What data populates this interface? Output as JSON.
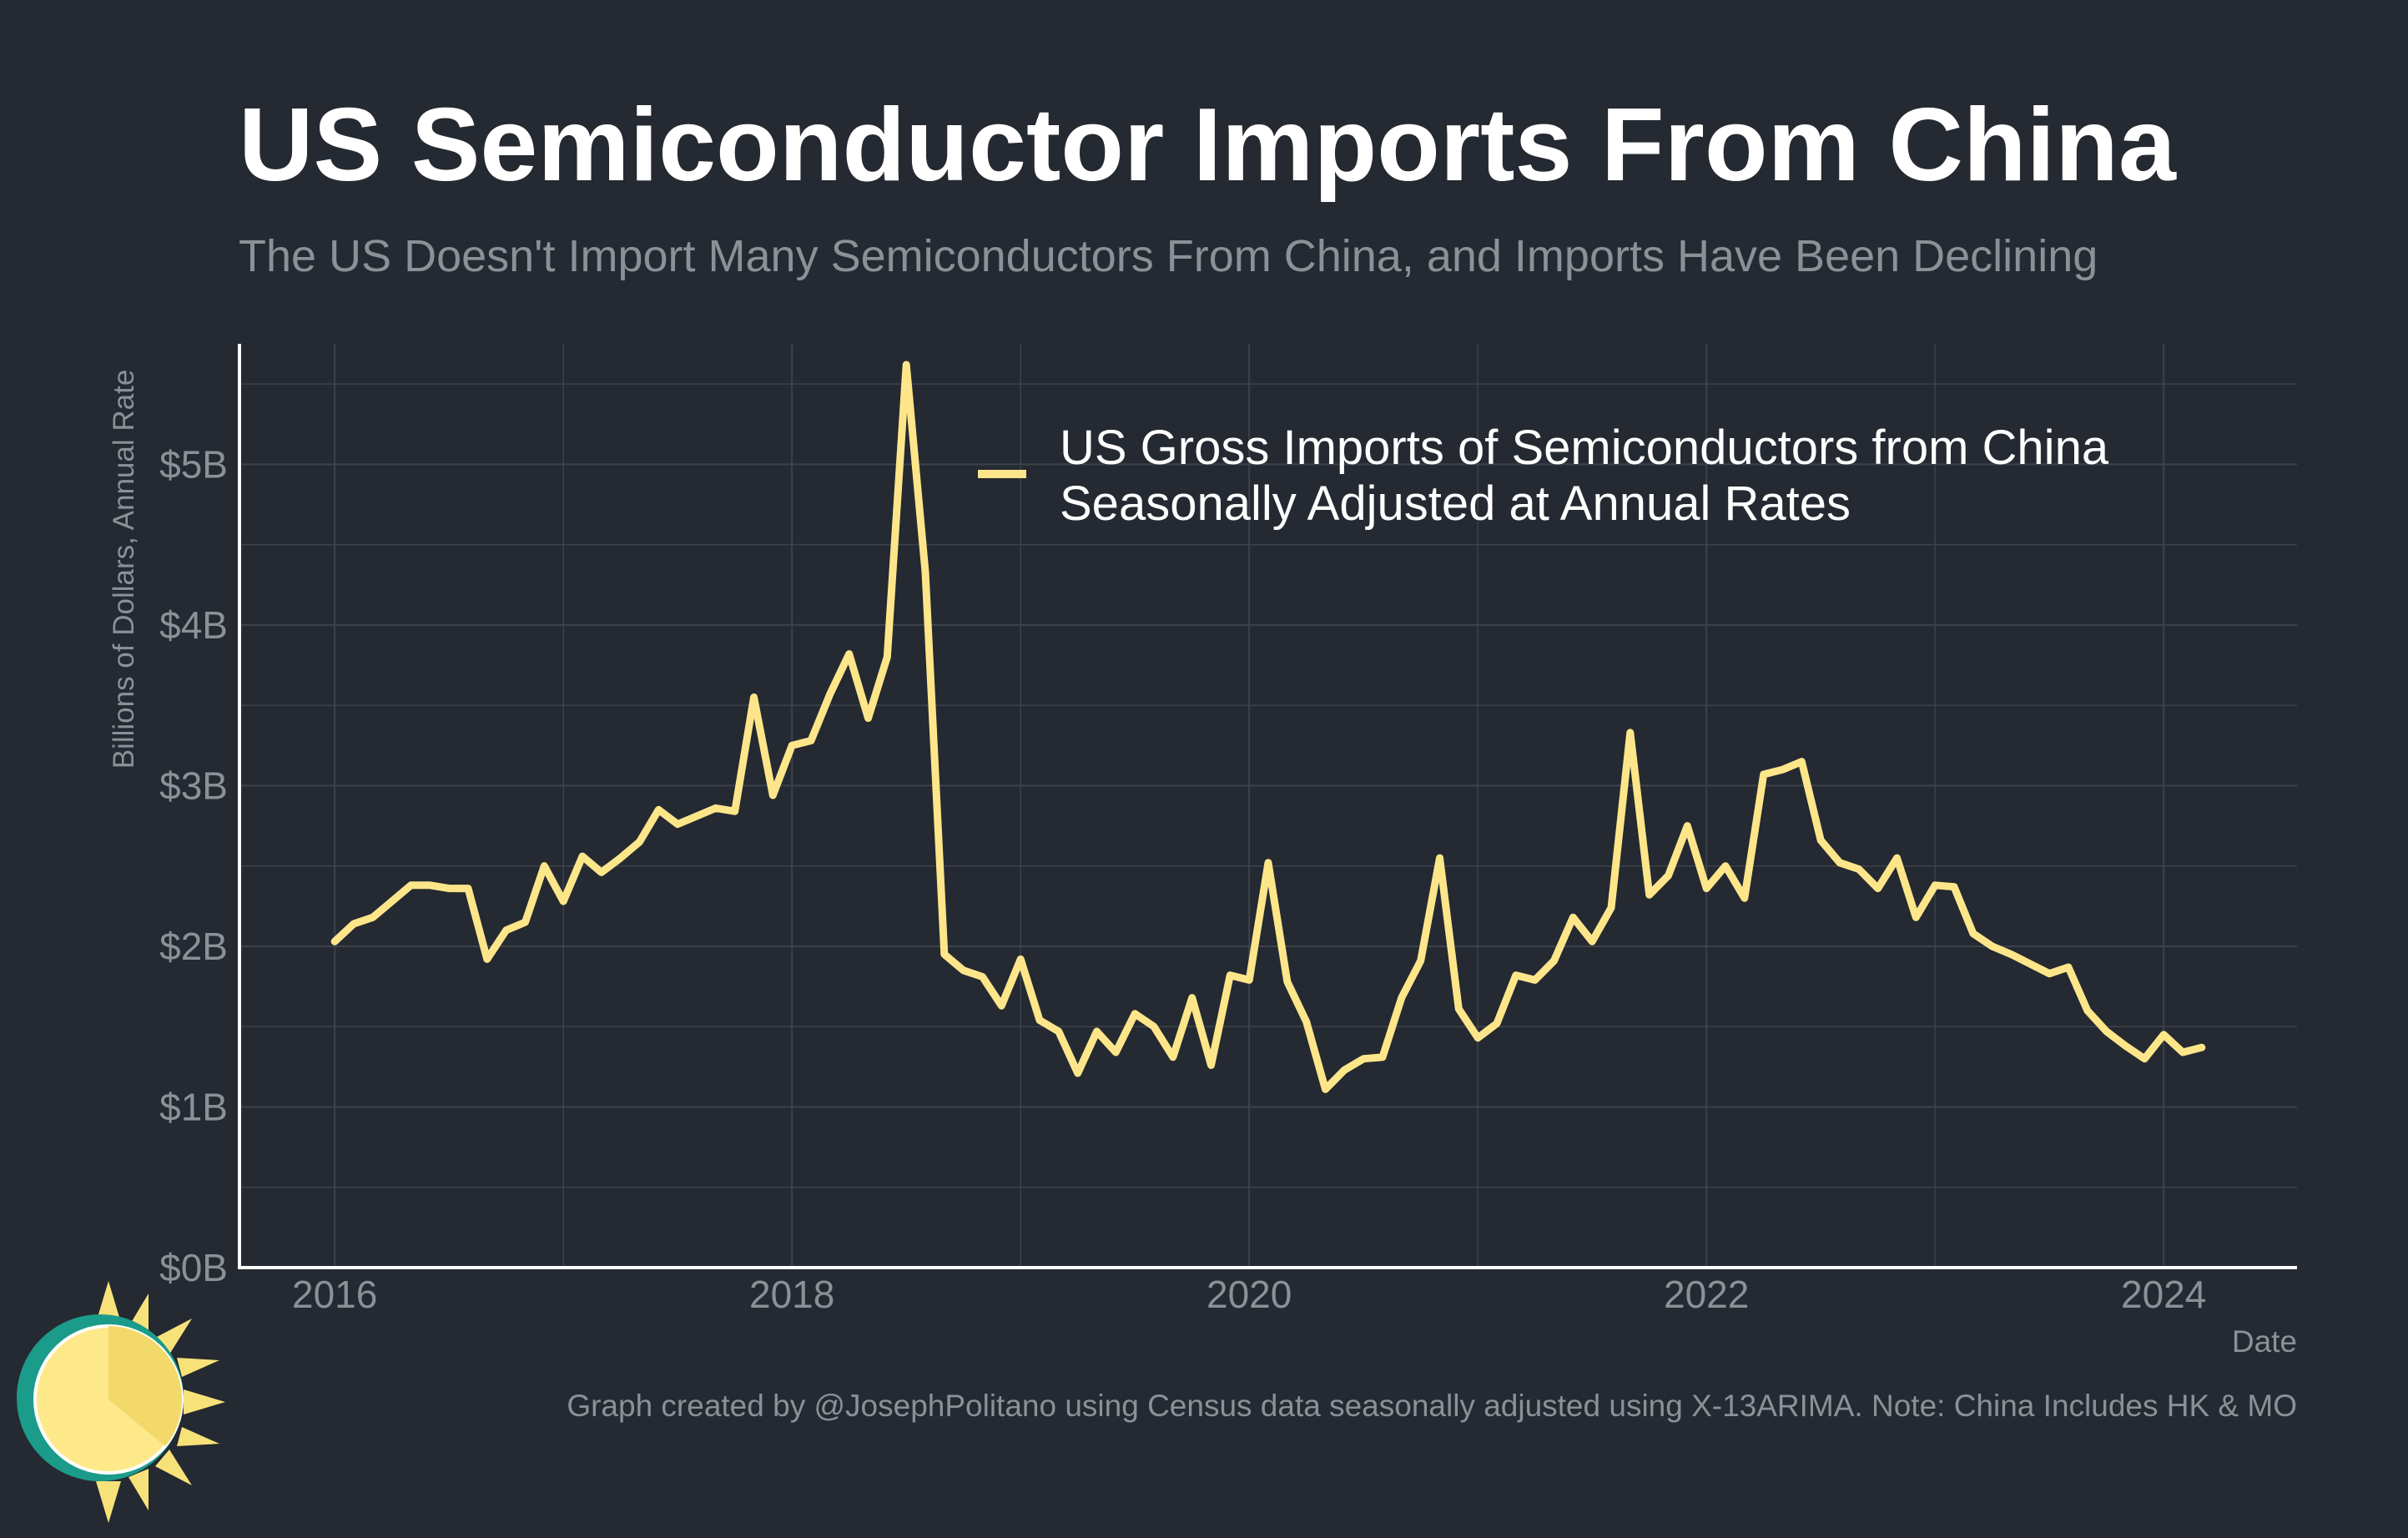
{
  "header": {
    "title": "US Semiconductor Imports From China",
    "subtitle": "The US Doesn't Import Many Semiconductors From China, and Imports Have Been Declining"
  },
  "footer": {
    "caption": "Graph created by @JosephPolitano using Census data seasonally adjusted using X-13ARIMA. Note: China Includes HK & MO"
  },
  "logo": {
    "icon": "sun-logo-icon",
    "colors": [
      "#f7e27a",
      "#fde98a",
      "#1b9b8a"
    ]
  },
  "colors": {
    "background": "#252931",
    "grid": "#3d424b",
    "axis": "#ffffff",
    "tick_text": "#8c9097",
    "line": "#fde68a"
  },
  "chart_data": {
    "type": "line",
    "xlabel": "Date",
    "ylabel": "Billions of Dollars, Annual Rate",
    "x_ticks": [
      "2016",
      "2018",
      "2020",
      "2022",
      "2024"
    ],
    "y_ticks": [
      "$0B",
      "$1B",
      "$2B",
      "$3B",
      "$4B",
      "$5B"
    ],
    "xlim": [
      "2015-08",
      "2024-08"
    ],
    "ylim": [
      0,
      5.75
    ],
    "grid": true,
    "legend_position": "top-right",
    "series": [
      {
        "name": "US Gross Imports of Semiconductors from China Seasonally Adjusted at Annual Rates",
        "x": [
          "2016-01",
          "2016-02",
          "2016-03",
          "2016-04",
          "2016-05",
          "2016-06",
          "2016-07",
          "2016-08",
          "2016-09",
          "2016-10",
          "2016-11",
          "2016-12",
          "2017-01",
          "2017-02",
          "2017-03",
          "2017-04",
          "2017-05",
          "2017-06",
          "2017-07",
          "2017-08",
          "2017-09",
          "2017-10",
          "2017-11",
          "2017-12",
          "2018-01",
          "2018-02",
          "2018-03",
          "2018-04",
          "2018-05",
          "2018-06",
          "2018-07",
          "2018-08",
          "2018-09",
          "2018-10",
          "2018-11",
          "2018-12",
          "2019-01",
          "2019-02",
          "2019-03",
          "2019-04",
          "2019-05",
          "2019-06",
          "2019-07",
          "2019-08",
          "2019-09",
          "2019-10",
          "2019-11",
          "2019-12",
          "2020-01",
          "2020-02",
          "2020-03",
          "2020-04",
          "2020-05",
          "2020-06",
          "2020-07",
          "2020-08",
          "2020-09",
          "2020-10",
          "2020-11",
          "2020-12",
          "2021-01",
          "2021-02",
          "2021-03",
          "2021-04",
          "2021-05",
          "2021-06",
          "2021-07",
          "2021-08",
          "2021-09",
          "2021-10",
          "2021-11",
          "2021-12",
          "2022-01",
          "2022-02",
          "2022-03",
          "2022-04",
          "2022-05",
          "2022-06",
          "2022-07",
          "2022-08",
          "2022-09",
          "2022-10",
          "2022-11",
          "2022-12",
          "2023-01",
          "2023-02",
          "2023-03",
          "2023-04",
          "2023-05",
          "2023-06",
          "2023-07",
          "2023-08",
          "2023-09",
          "2023-10",
          "2023-11",
          "2023-12",
          "2024-01",
          "2024-02",
          "2024-03"
        ],
        "values": [
          2.03,
          2.14,
          2.18,
          2.28,
          2.38,
          2.38,
          2.36,
          2.36,
          1.92,
          2.1,
          2.15,
          2.5,
          2.28,
          2.56,
          2.46,
          2.55,
          2.65,
          2.85,
          2.76,
          2.81,
          2.86,
          2.84,
          3.55,
          2.94,
          3.25,
          3.28,
          3.57,
          3.82,
          3.42,
          3.8,
          5.62,
          4.33,
          1.95,
          1.85,
          1.81,
          1.63,
          1.92,
          1.54,
          1.47,
          1.21,
          1.47,
          1.34,
          1.58,
          1.5,
          1.31,
          1.68,
          1.26,
          1.82,
          1.79,
          2.52,
          1.78,
          1.53,
          1.11,
          1.23,
          1.3,
          1.31,
          1.68,
          1.91,
          2.55,
          1.61,
          1.43,
          1.52,
          1.82,
          1.79,
          1.91,
          2.18,
          2.03,
          2.24,
          3.33,
          2.32,
          2.44,
          2.75,
          2.36,
          2.5,
          2.3,
          3.07,
          3.1,
          3.15,
          2.66,
          2.52,
          2.48,
          2.36,
          2.55,
          2.18,
          2.38,
          2.37,
          2.08,
          2.0,
          1.95,
          1.89,
          1.83,
          1.87,
          1.6,
          1.47,
          1.38,
          1.3,
          1.45,
          1.34,
          1.37
        ]
      }
    ]
  }
}
